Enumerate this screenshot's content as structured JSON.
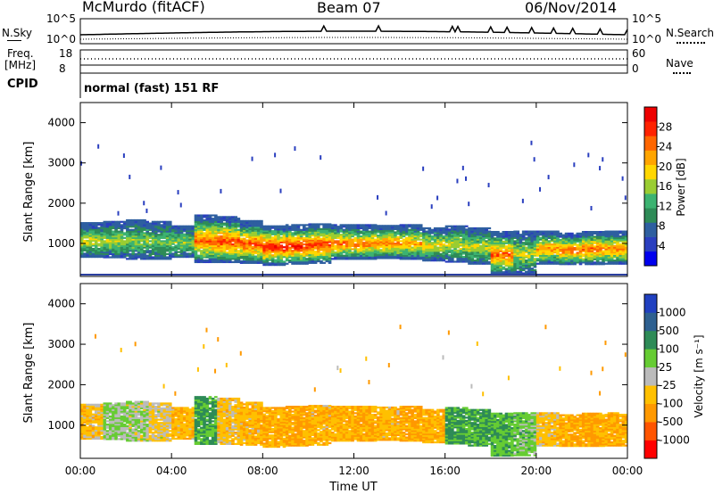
{
  "header": {
    "title": "McMurdo (fitACF)",
    "beam": "Beam 07",
    "date": "06/Nov/2014"
  },
  "summary_panels": {
    "nsky_label": "N.Sky",
    "nsearch_label": "N.Search",
    "nsky_ticks": [
      "10^5",
      "10^0"
    ],
    "nsearch_ticks": [
      "10^5",
      "10^0"
    ],
    "freq_label_1": "Freq.",
    "freq_label_2": "[MHz]",
    "freq_ticks": [
      "18",
      "8"
    ],
    "nave_label": "Nave",
    "nave_ticks": [
      "60",
      "0"
    ],
    "cpid_label": "CPID",
    "cpid_text": "normal (fast) 151 RF"
  },
  "colors": {
    "power_scale": [
      "#0000ee",
      "#2a3fbf",
      "#2e5fa0",
      "#2e8b57",
      "#3cb371",
      "#9acd32",
      "#ffd700",
      "#ffa500",
      "#ff6600",
      "#ff2200",
      "#ee0000"
    ],
    "velocity_scale": [
      "#2040c0",
      "#2e6090",
      "#2e8b57",
      "#66cc33",
      "#bbbbbb",
      "#ffc000",
      "#ff9900",
      "#ff5500",
      "#ff0000"
    ]
  },
  "chart_data": [
    {
      "type": "heatmap",
      "title": "Power",
      "ylabel": "Slant Range [km]",
      "xlabel": "",
      "ylim": [
        180,
        4500
      ],
      "yticks": [
        "1000",
        "2000",
        "3000",
        "4000"
      ],
      "colorbar_label": "Power [dB]",
      "colorbar_ticks": [
        "4",
        "8",
        "12",
        "16",
        "20",
        "24",
        "28"
      ],
      "colorbar_range": [
        0,
        32
      ],
      "x_hours": [
        0,
        1,
        2,
        3,
        4,
        5,
        6,
        7,
        8,
        9,
        10,
        11,
        12,
        13,
        14,
        15,
        16,
        17,
        18,
        19,
        20,
        21,
        22,
        23
      ],
      "echo_lower_km": [
        650,
        640,
        600,
        600,
        650,
        520,
        520,
        500,
        450,
        480,
        500,
        600,
        600,
        620,
        600,
        560,
        530,
        480,
        230,
        240,
        480,
        470,
        470,
        480
      ],
      "echo_upper_km": [
        1500,
        1550,
        1600,
        1550,
        1450,
        1700,
        1650,
        1550,
        1450,
        1450,
        1500,
        1450,
        1450,
        1450,
        1450,
        1400,
        1450,
        1400,
        1300,
        1300,
        1300,
        1250,
        1300,
        1300
      ],
      "peak_power_db": [
        18,
        17,
        16,
        15,
        16,
        26,
        28,
        27,
        30,
        30,
        29,
        26,
        25,
        25,
        23,
        20,
        18,
        18,
        26,
        18,
        24,
        26,
        26,
        25
      ]
    },
    {
      "type": "heatmap",
      "title": "Velocity",
      "ylabel": "Slant Range [km]",
      "xlabel": "Time UT",
      "ylim": [
        180,
        4500
      ],
      "yticks": [
        "1000",
        "2000",
        "3000",
        "4000"
      ],
      "xticks": [
        "00:00",
        "04:00",
        "08:00",
        "12:00",
        "16:00",
        "20:00",
        "00:00"
      ],
      "colorbar_label": "Velocity [m s⁻¹]",
      "colorbar_ticks": [
        "1000",
        "500",
        "100",
        "25",
        "-25",
        "-100",
        "-500",
        "-1000"
      ],
      "x_hours": [
        0,
        1,
        2,
        3,
        4,
        5,
        6,
        7,
        8,
        9,
        10,
        11,
        12,
        13,
        14,
        15,
        16,
        17,
        18,
        19,
        20,
        21,
        22,
        23
      ],
      "echo_lower_km": [
        650,
        640,
        600,
        600,
        650,
        520,
        520,
        500,
        450,
        480,
        500,
        600,
        600,
        620,
        600,
        560,
        530,
        480,
        230,
        240,
        480,
        470,
        470,
        480
      ],
      "echo_upper_km": [
        1500,
        1550,
        1600,
        1550,
        1450,
        1700,
        1650,
        1550,
        1450,
        1450,
        1500,
        1450,
        1450,
        1450,
        1450,
        1400,
        1450,
        1400,
        1300,
        1300,
        1300,
        1250,
        1300,
        1300
      ],
      "mean_velocity_ms": [
        -60,
        40,
        20,
        -30,
        -80,
        120,
        -60,
        -80,
        -100,
        -120,
        -80,
        -90,
        -100,
        -80,
        -110,
        -90,
        120,
        110,
        90,
        60,
        -60,
        -100,
        -110,
        -90
      ]
    }
  ]
}
